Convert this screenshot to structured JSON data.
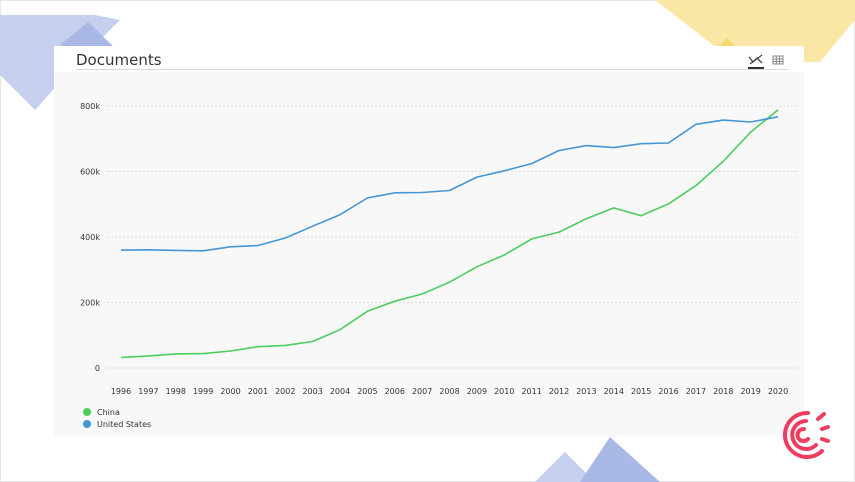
{
  "chart_data": {
    "type": "line",
    "title": "Documents",
    "x": [
      1996,
      1997,
      1998,
      1999,
      2000,
      2001,
      2002,
      2003,
      2004,
      2005,
      2006,
      2007,
      2008,
      2009,
      2010,
      2011,
      2012,
      2013,
      2014,
      2015,
      2016,
      2017,
      2018,
      2019,
      2020
    ],
    "y_ticks": [
      "0",
      "200k",
      "400k",
      "600k",
      "800k"
    ],
    "ylim": [
      0,
      800000
    ],
    "grid": true,
    "legend_position": "bottom-left",
    "series": [
      {
        "name": "China",
        "color": "#4ccd5e",
        "values": [
          32000,
          37000,
          43000,
          44000,
          52000,
          65000,
          69000,
          81000,
          117000,
          173000,
          204000,
          226000,
          262000,
          309000,
          345000,
          394000,
          415000,
          456000,
          489000,
          465000,
          501000,
          557000,
          631000,
          720000,
          788000
        ]
      },
      {
        "name": "United States",
        "color": "#4596d6",
        "values": [
          360000,
          361000,
          359000,
          358000,
          370000,
          374000,
          397000,
          433000,
          468000,
          519000,
          535000,
          536000,
          542000,
          583000,
          602000,
          624000,
          664000,
          679000,
          673000,
          685000,
          687000,
          744000,
          757000,
          751000,
          767000
        ]
      }
    ]
  }
}
